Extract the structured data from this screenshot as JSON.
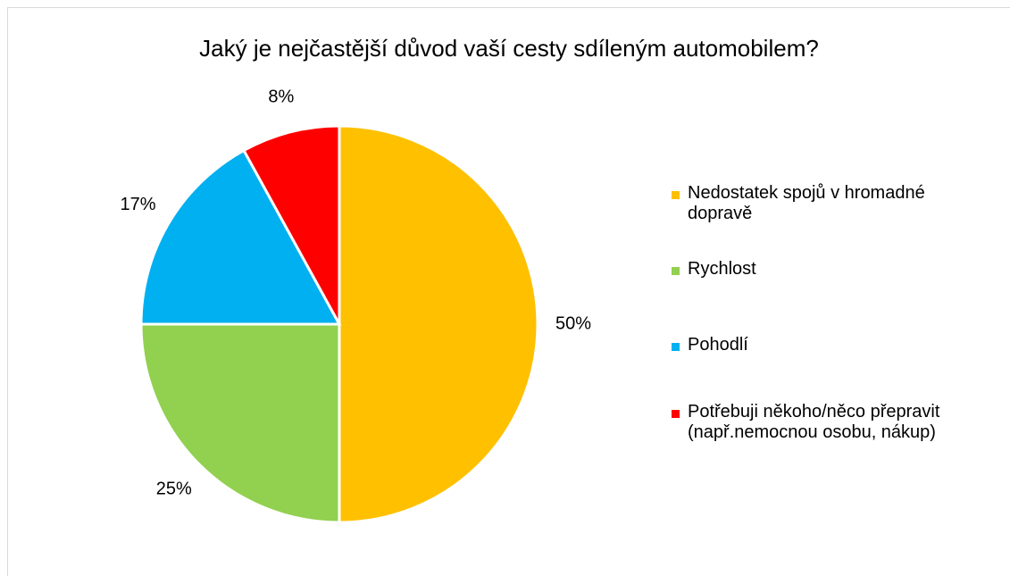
{
  "chart_data": {
    "type": "pie",
    "title": "Jaký je nejčastější důvod vaší cesty sdíleným automobilem?",
    "categories": [
      "Nedostatek spojů v hromadné dopravě",
      "Rychlost",
      "Pohodlí",
      "Potřebuji někoho/něco přepravit (např.nemocnou osobu, nákup)"
    ],
    "values": [
      50,
      25,
      17,
      8
    ],
    "value_labels": [
      "50%",
      "25%",
      "17%",
      "8%"
    ],
    "colors": [
      "#ffc000",
      "#92d050",
      "#00b0f0",
      "#ff0000"
    ],
    "legend": "right"
  }
}
